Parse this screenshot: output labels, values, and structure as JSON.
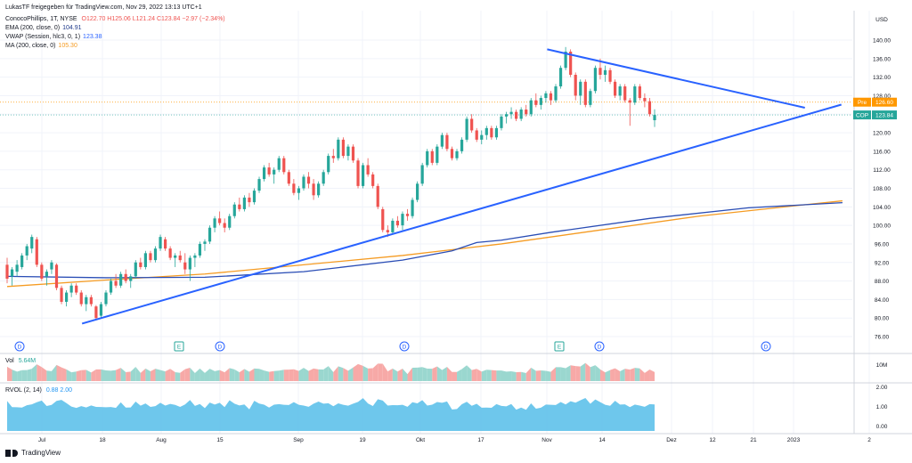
{
  "header": {
    "published_by": "LukasTF freigegeben für TradingView.com, Nov 29, 2022 13:13 UTC+1",
    "symbol_line": "ConocoPhillips, 1T, NYSE",
    "ohlc": "O122.70 H125.06 L121.24 C123.84 −2.97 (−2.34%)",
    "indicators": [
      {
        "label": "EMA (200, close, 0)",
        "value": "104.91",
        "color": "#1e3a8a"
      },
      {
        "label": "VWAP (Session, hlc3, 0, 1)",
        "value": "123.38",
        "color": "#2962ff"
      },
      {
        "label": "MA (200, close, 0)",
        "value": "105.30",
        "color": "#f59b22"
      }
    ]
  },
  "price_axis": {
    "currency": "USD",
    "ticks": [
      "140.00",
      "136.00",
      "132.00",
      "128.00",
      "124.00",
      "120.00",
      "116.00",
      "112.00",
      "108.00",
      "104.00",
      "100.00",
      "96.00",
      "92.00",
      "88.00",
      "84.00",
      "80.00",
      "76.00"
    ],
    "tags": [
      {
        "label": "Pre",
        "value": "126.60",
        "color": "#ff9800"
      },
      {
        "label": "COP",
        "value": "123.84",
        "color": "#26a69a"
      }
    ]
  },
  "volume_pane": {
    "label": "Vol",
    "value": "5.64M",
    "axis_ticks": [
      "10M"
    ]
  },
  "rvol_pane": {
    "label": "RVOL (2, 14)",
    "values": "0.88  2.00",
    "axis_ticks": [
      "2.00",
      "1.00",
      "0.00"
    ]
  },
  "time_axis": {
    "labels": [
      "Jul",
      "18",
      "Aug",
      "15",
      "Sep",
      "19",
      "Okt",
      "17",
      "Nov",
      "14",
      "Dez",
      "12",
      "21",
      "2023",
      "2"
    ]
  },
  "event_markers": [
    "D",
    "E",
    "D",
    "D",
    "E",
    "D",
    "D"
  ],
  "footer": {
    "brand": "TradingView"
  },
  "chart_data": {
    "type": "candlestick",
    "y_range": [
      74,
      143
    ],
    "dates_approx": "2022-06-22 to 2022-11-28 daily",
    "series": [
      {
        "name": "price",
        "ohlc": [
          [
            91.5,
            93.0,
            87.5,
            88.5
          ],
          [
            89.0,
            91.0,
            87.0,
            90.5
          ],
          [
            90.0,
            92.5,
            89.0,
            91.5
          ],
          [
            91.0,
            94.0,
            90.5,
            93.5
          ],
          [
            93.5,
            96.0,
            92.5,
            95.5
          ],
          [
            95.0,
            98.0,
            94.0,
            97.5
          ],
          [
            97.0,
            97.5,
            91.0,
            91.5
          ],
          [
            91.5,
            92.0,
            88.0,
            88.5
          ],
          [
            89.0,
            90.5,
            87.0,
            90.0
          ],
          [
            90.5,
            92.5,
            89.5,
            92.0
          ],
          [
            91.5,
            91.8,
            86.0,
            86.5
          ],
          [
            86.5,
            87.0,
            83.0,
            83.5
          ],
          [
            83.5,
            86.0,
            82.5,
            85.5
          ],
          [
            85.5,
            87.5,
            84.5,
            87.0
          ],
          [
            87.0,
            87.5,
            85.0,
            85.5
          ],
          [
            85.5,
            86.0,
            82.5,
            83.0
          ],
          [
            83.0,
            85.0,
            81.5,
            84.5
          ],
          [
            84.5,
            85.0,
            82.5,
            83.0
          ],
          [
            82.5,
            82.8,
            79.5,
            80.0
          ],
          [
            80.5,
            83.5,
            80.0,
            83.0
          ],
          [
            83.0,
            86.0,
            82.5,
            85.5
          ],
          [
            85.5,
            88.5,
            85.0,
            88.0
          ],
          [
            88.0,
            89.5,
            86.5,
            87.0
          ],
          [
            87.0,
            90.0,
            86.5,
            89.5
          ],
          [
            89.5,
            90.5,
            87.5,
            88.0
          ],
          [
            88.0,
            89.5,
            86.5,
            89.0
          ],
          [
            89.0,
            92.5,
            88.5,
            92.0
          ],
          [
            92.0,
            93.0,
            90.5,
            91.0
          ],
          [
            91.0,
            94.5,
            90.5,
            94.0
          ],
          [
            94.0,
            94.5,
            92.0,
            92.5
          ],
          [
            92.5,
            95.5,
            92.0,
            95.0
          ],
          [
            95.0,
            98.0,
            94.5,
            97.5
          ],
          [
            97.0,
            97.5,
            94.5,
            95.0
          ],
          [
            95.0,
            95.5,
            92.5,
            93.0
          ],
          [
            93.0,
            94.0,
            91.0,
            93.5
          ],
          [
            93.5,
            94.5,
            92.0,
            92.5
          ],
          [
            92.0,
            94.0,
            89.5,
            90.5
          ],
          [
            90.5,
            93.5,
            88.0,
            93.0
          ],
          [
            93.0,
            94.0,
            91.0,
            93.5
          ],
          [
            93.5,
            96.5,
            93.0,
            96.0
          ],
          [
            96.0,
            97.0,
            94.5,
            96.5
          ],
          [
            96.5,
            100.0,
            96.0,
            99.5
          ],
          [
            99.5,
            102.0,
            98.5,
            101.5
          ],
          [
            101.5,
            103.0,
            100.0,
            100.5
          ],
          [
            100.5,
            101.5,
            98.5,
            99.5
          ],
          [
            99.5,
            102.5,
            99.0,
            102.0
          ],
          [
            102.0,
            105.0,
            101.5,
            104.5
          ],
          [
            104.5,
            106.0,
            103.0,
            103.5
          ],
          [
            103.5,
            106.5,
            103.0,
            106.0
          ],
          [
            106.0,
            107.0,
            104.0,
            105.0
          ],
          [
            105.0,
            108.0,
            104.5,
            107.5
          ],
          [
            107.5,
            110.5,
            107.0,
            110.0
          ],
          [
            110.0,
            113.0,
            109.5,
            112.5
          ],
          [
            112.5,
            113.5,
            110.5,
            111.0
          ],
          [
            111.0,
            112.5,
            109.0,
            112.0
          ],
          [
            112.0,
            115.0,
            111.5,
            114.5
          ],
          [
            114.5,
            115.0,
            111.0,
            111.5
          ],
          [
            111.5,
            112.0,
            108.5,
            109.0
          ],
          [
            109.0,
            110.0,
            106.5,
            107.0
          ],
          [
            107.0,
            108.5,
            105.5,
            108.0
          ],
          [
            108.0,
            111.0,
            107.5,
            110.5
          ],
          [
            110.5,
            111.5,
            108.0,
            109.0
          ],
          [
            109.0,
            110.0,
            105.5,
            106.5
          ],
          [
            106.5,
            109.5,
            106.0,
            109.0
          ],
          [
            109.0,
            112.0,
            108.5,
            111.5
          ],
          [
            111.5,
            115.5,
            111.0,
            115.0
          ],
          [
            115.0,
            116.5,
            113.5,
            114.5
          ],
          [
            114.5,
            119.0,
            114.0,
            118.5
          ],
          [
            118.5,
            119.0,
            114.5,
            115.0
          ],
          [
            115.0,
            117.5,
            114.0,
            117.0
          ],
          [
            117.0,
            117.5,
            113.5,
            114.0
          ],
          [
            114.0,
            114.5,
            108.0,
            108.5
          ],
          [
            108.5,
            113.5,
            108.0,
            113.0
          ],
          [
            113.0,
            114.5,
            110.5,
            111.0
          ],
          [
            111.0,
            111.5,
            108.0,
            108.5
          ],
          [
            108.5,
            109.0,
            103.5,
            104.0
          ],
          [
            103.5,
            104.0,
            98.5,
            99.0
          ],
          [
            99.0,
            100.0,
            97.5,
            98.5
          ],
          [
            98.5,
            101.5,
            98.0,
            101.0
          ],
          [
            101.0,
            102.0,
            99.5,
            100.0
          ],
          [
            100.0,
            103.0,
            99.0,
            102.5
          ],
          [
            102.5,
            103.5,
            101.0,
            102.0
          ],
          [
            102.0,
            106.0,
            101.5,
            105.5
          ],
          [
            105.5,
            109.5,
            105.0,
            109.0
          ],
          [
            109.0,
            113.5,
            108.5,
            113.0
          ],
          [
            113.0,
            116.5,
            112.5,
            116.0
          ],
          [
            116.0,
            116.5,
            113.0,
            113.5
          ],
          [
            113.5,
            117.5,
            113.0,
            117.0
          ],
          [
            117.0,
            120.0,
            116.5,
            119.5
          ],
          [
            119.5,
            120.0,
            116.0,
            116.5
          ],
          [
            116.5,
            117.0,
            114.0,
            114.5
          ],
          [
            114.5,
            116.5,
            114.0,
            116.0
          ],
          [
            116.0,
            119.0,
            115.5,
            118.5
          ],
          [
            118.5,
            123.5,
            118.0,
            123.0
          ],
          [
            123.0,
            124.0,
            120.0,
            120.5
          ],
          [
            120.5,
            121.0,
            118.0,
            118.5
          ],
          [
            118.5,
            120.5,
            117.5,
            119.5
          ],
          [
            119.5,
            121.5,
            118.5,
            121.0
          ],
          [
            121.0,
            121.5,
            118.5,
            119.0
          ],
          [
            119.0,
            121.5,
            118.5,
            121.0
          ],
          [
            121.0,
            124.0,
            120.5,
            123.5
          ],
          [
            123.5,
            124.5,
            122.0,
            124.0
          ],
          [
            124.0,
            125.5,
            123.0,
            124.5
          ],
          [
            124.5,
            125.0,
            122.5,
            123.0
          ],
          [
            123.0,
            125.5,
            122.5,
            125.0
          ],
          [
            125.0,
            126.0,
            123.5,
            124.0
          ],
          [
            124.0,
            127.5,
            123.5,
            127.0
          ],
          [
            127.0,
            128.5,
            125.5,
            126.0
          ],
          [
            126.0,
            128.0,
            125.0,
            127.5
          ],
          [
            127.5,
            129.0,
            126.5,
            128.5
          ],
          [
            128.5,
            129.0,
            126.0,
            127.0
          ],
          [
            127.0,
            130.5,
            126.5,
            130.0
          ],
          [
            130.0,
            134.5,
            129.5,
            134.0
          ],
          [
            134.0,
            138.5,
            133.5,
            137.5
          ],
          [
            137.5,
            138.0,
            132.0,
            132.5
          ],
          [
            132.5,
            133.0,
            127.0,
            128.0
          ],
          [
            128.0,
            131.5,
            126.0,
            131.0
          ],
          [
            131.0,
            131.5,
            125.5,
            126.0
          ],
          [
            126.0,
            129.5,
            125.5,
            129.0
          ],
          [
            129.0,
            134.5,
            128.5,
            134.0
          ],
          [
            134.0,
            136.0,
            131.5,
            132.5
          ],
          [
            132.5,
            134.5,
            131.0,
            133.5
          ],
          [
            133.5,
            134.0,
            130.5,
            131.0
          ],
          [
            131.0,
            131.5,
            127.5,
            128.0
          ],
          [
            128.0,
            130.5,
            127.0,
            130.0
          ],
          [
            130.0,
            130.5,
            126.5,
            127.0
          ],
          [
            127.0,
            127.5,
            121.5,
            126.5
          ],
          [
            126.5,
            130.5,
            126.0,
            130.0
          ],
          [
            130.0,
            130.5,
            127.0,
            127.5
          ],
          [
            127.5,
            128.5,
            125.5,
            126.8
          ],
          [
            126.8,
            127.5,
            123.5,
            124.0
          ],
          [
            122.7,
            125.06,
            121.24,
            123.84
          ]
        ]
      },
      {
        "name": "MA (200, close, 0)",
        "values": [
          [
            0,
            86.8
          ],
          [
            20,
            88.2
          ],
          [
            40,
            89.5
          ],
          [
            60,
            91.5
          ],
          [
            80,
            93.5
          ],
          [
            100,
            96.0
          ],
          [
            120,
            99.0
          ],
          [
            140,
            102.0
          ],
          [
            160,
            104.3
          ],
          [
            169,
            105.3
          ]
        ]
      },
      {
        "name": "EMA (200, close, 0)",
        "values": [
          [
            0,
            89.0
          ],
          [
            20,
            88.7
          ],
          [
            40,
            88.8
          ],
          [
            60,
            90.0
          ],
          [
            80,
            92.5
          ],
          [
            90,
            94.5
          ],
          [
            95,
            96.3
          ],
          [
            100,
            96.8
          ],
          [
            110,
            98.5
          ],
          [
            130,
            101.5
          ],
          [
            150,
            103.8
          ],
          [
            169,
            104.9
          ]
        ]
      }
    ],
    "trendlines": [
      {
        "from": [
          0.09,
          78.8
        ],
        "to": [
          0.82,
          125.3
        ]
      },
      {
        "from": [
          0.6,
          138.0
        ],
        "to": [
          0.78,
          125.4
        ]
      }
    ]
  }
}
